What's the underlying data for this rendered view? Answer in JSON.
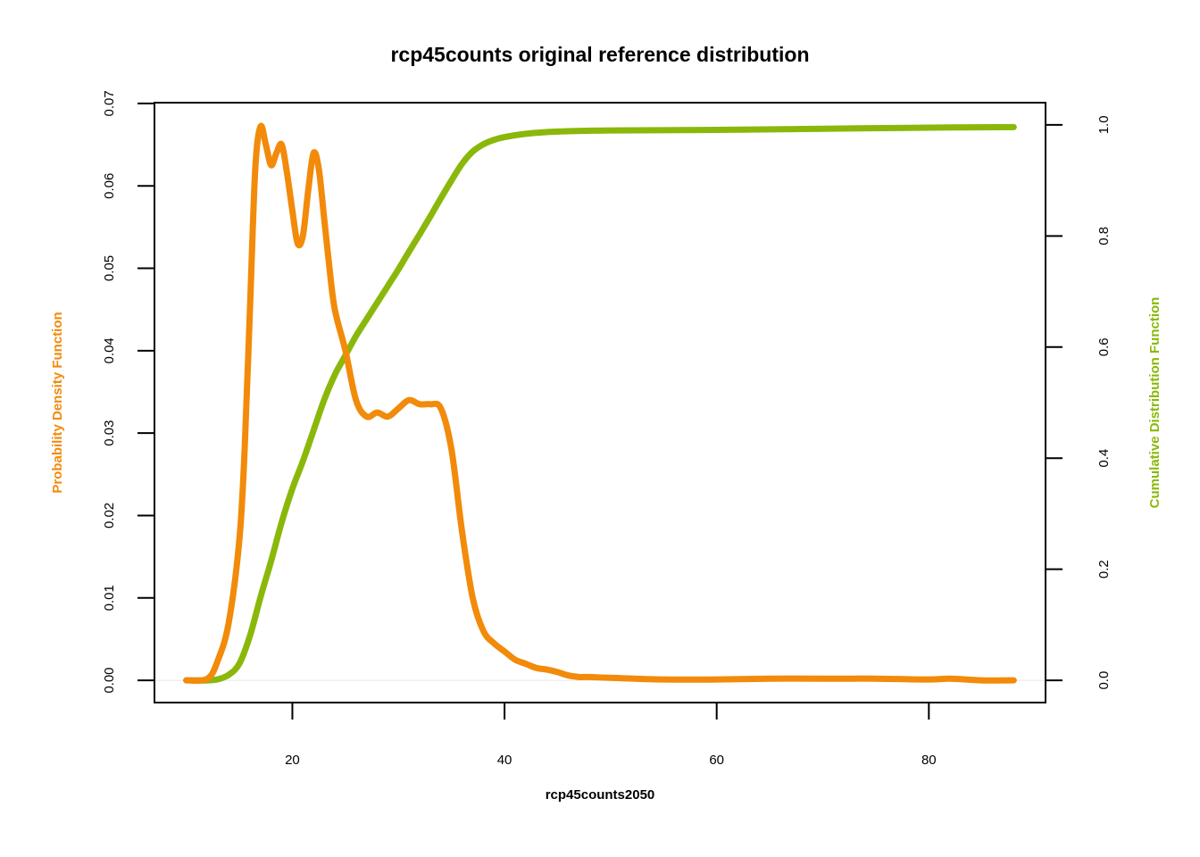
{
  "chart_data": {
    "type": "line",
    "title": "rcp45counts original reference distribution",
    "xlabel": "rcp45counts2050",
    "ylabel_left": "Probability Density Function",
    "ylabel_right": "Cumulative Distribution Function",
    "xlim": [
      7,
      91
    ],
    "ylim_left": [
      -0.0027,
      0.0701
    ],
    "ylim_right": [
      -0.04,
      1.04
    ],
    "x_ticks": [
      20,
      40,
      60,
      80
    ],
    "y_ticks_left": [
      0.0,
      0.01,
      0.02,
      0.03,
      0.04,
      0.05,
      0.06,
      0.07
    ],
    "y_ticks_right": [
      0.0,
      0.2,
      0.4,
      0.6,
      0.8,
      1.0
    ],
    "x_tick_labels": [
      "20",
      "40",
      "60",
      "80"
    ],
    "y_tick_labels_left": [
      "0.00",
      "0.01",
      "0.02",
      "0.03",
      "0.04",
      "0.05",
      "0.06",
      "0.07"
    ],
    "y_tick_labels_right": [
      "0.0",
      "0.2",
      "0.4",
      "0.6",
      "0.8",
      "1.0"
    ],
    "grid": false,
    "colors": {
      "pdf": "#F28A0A",
      "cdf": "#8AB80A",
      "baseline": "#E8E8E8"
    },
    "series": [
      {
        "axis": "left",
        "color": "#F28A0A",
        "x": [
          10,
          12,
          13,
          14,
          15,
          15.5,
          16,
          16.5,
          17,
          17.5,
          18,
          18.5,
          19,
          19.5,
          20,
          20.5,
          21,
          21.5,
          22,
          22.5,
          23,
          23.5,
          24,
          25,
          26,
          27,
          28,
          29,
          30,
          31,
          32,
          33,
          34,
          35,
          36,
          37,
          38,
          39,
          40,
          41,
          42,
          43,
          44,
          45,
          46,
          47,
          48,
          50,
          55,
          60,
          65,
          70,
          72,
          75,
          80,
          82,
          85,
          88
        ],
        "y": [
          0.0,
          0.0002,
          0.0025,
          0.007,
          0.017,
          0.028,
          0.045,
          0.062,
          0.0672,
          0.065,
          0.0625,
          0.064,
          0.065,
          0.0615,
          0.057,
          0.053,
          0.054,
          0.0595,
          0.064,
          0.062,
          0.056,
          0.05,
          0.045,
          0.04,
          0.034,
          0.032,
          0.0325,
          0.032,
          0.033,
          0.034,
          0.0335,
          0.0335,
          0.033,
          0.028,
          0.018,
          0.01,
          0.006,
          0.0045,
          0.0035,
          0.0025,
          0.002,
          0.0015,
          0.0013,
          0.001,
          0.0006,
          0.0004,
          0.0004,
          0.0003,
          0.0001,
          0.0001,
          0.0002,
          0.0002,
          0.0002,
          0.0002,
          0.0001,
          0.0002,
          0.0,
          0.0
        ]
      },
      {
        "axis": "right",
        "color": "#8AB80A",
        "x": [
          10,
          12,
          13,
          14,
          15,
          16,
          17,
          18,
          19,
          20,
          21,
          22,
          23,
          24,
          25,
          26,
          27,
          28,
          29,
          30,
          31,
          32,
          33,
          34,
          35,
          36,
          37,
          38,
          39,
          40,
          42,
          45,
          50,
          60,
          70,
          80,
          88
        ],
        "y": [
          0.0,
          0.0,
          0.002,
          0.01,
          0.03,
          0.08,
          0.15,
          0.215,
          0.285,
          0.345,
          0.395,
          0.45,
          0.505,
          0.55,
          0.585,
          0.62,
          0.65,
          0.68,
          0.71,
          0.74,
          0.772,
          0.803,
          0.835,
          0.868,
          0.9,
          0.93,
          0.952,
          0.965,
          0.973,
          0.978,
          0.984,
          0.988,
          0.99,
          0.991,
          0.993,
          0.995,
          0.996
        ]
      }
    ]
  }
}
